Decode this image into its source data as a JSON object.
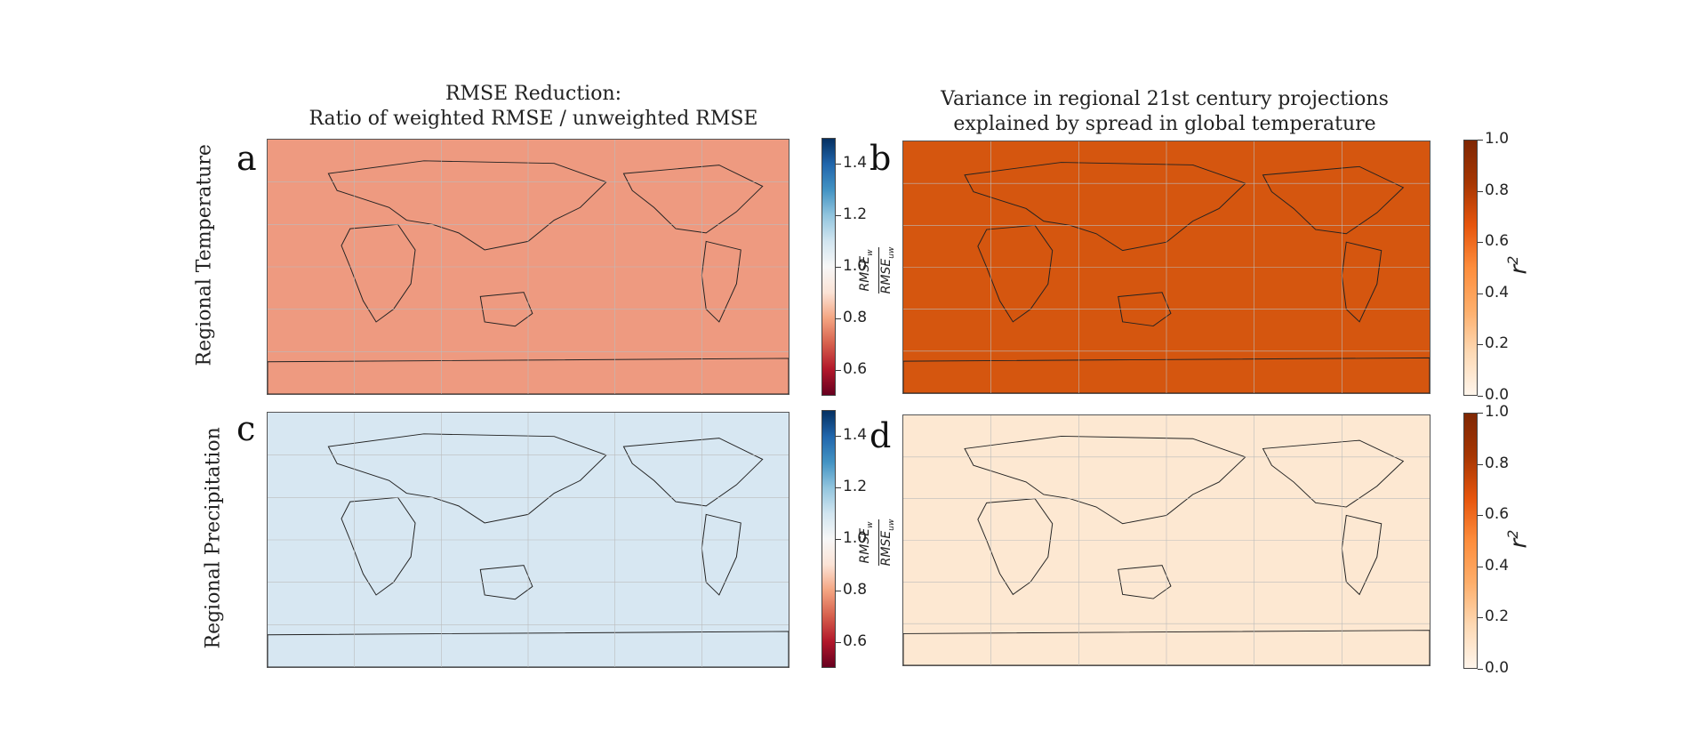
{
  "titles": {
    "left_line1": "RMSE Reduction:",
    "left_line2": "Ratio of weighted RMSE / unweighted RMSE",
    "right_line1": "Variance in regional 21st century projections",
    "right_line2": "explained by spread in global temperature"
  },
  "rows": {
    "top": "Regional Temperature",
    "bottom": "Regional Precipitation"
  },
  "panels": {
    "a": "a",
    "b": "b",
    "c": "c",
    "d": "d"
  },
  "colorbars": {
    "rmse": {
      "ticks": [
        "1.4",
        "1.2",
        "1.0",
        "0.8",
        "0.6"
      ],
      "tick_values": [
        1.4,
        1.2,
        1.0,
        0.8,
        0.6
      ],
      "range": [
        0.5,
        1.5
      ],
      "label_num": "RMSE",
      "label_num_sub": "w",
      "label_den": "RMSE",
      "label_den_sub": "uw",
      "colors": [
        "#67001f",
        "#b2182b",
        "#d6604d",
        "#f4a582",
        "#fbe3d6",
        "#f7f7f7",
        "#d1e5f0",
        "#92c5de",
        "#4393c3",
        "#2166ac",
        "#053061"
      ]
    },
    "r2": {
      "ticks": [
        "1.0",
        "0.8",
        "0.6",
        "0.4",
        "0.2",
        "0.0"
      ],
      "tick_values": [
        1.0,
        0.8,
        0.6,
        0.4,
        0.2,
        0.0
      ],
      "range": [
        0.0,
        1.0
      ],
      "label": "r",
      "label_sup": "2",
      "colors": [
        "#fff5eb",
        "#fdd9b4",
        "#fdae6b",
        "#fd8d3c",
        "#e6550d",
        "#a63603",
        "#7f2704"
      ]
    }
  },
  "map_fills": {
    "a": "#ee9a80",
    "b": "#d5560f",
    "c": "#d7e7f2",
    "d": "#fde8d2"
  }
}
